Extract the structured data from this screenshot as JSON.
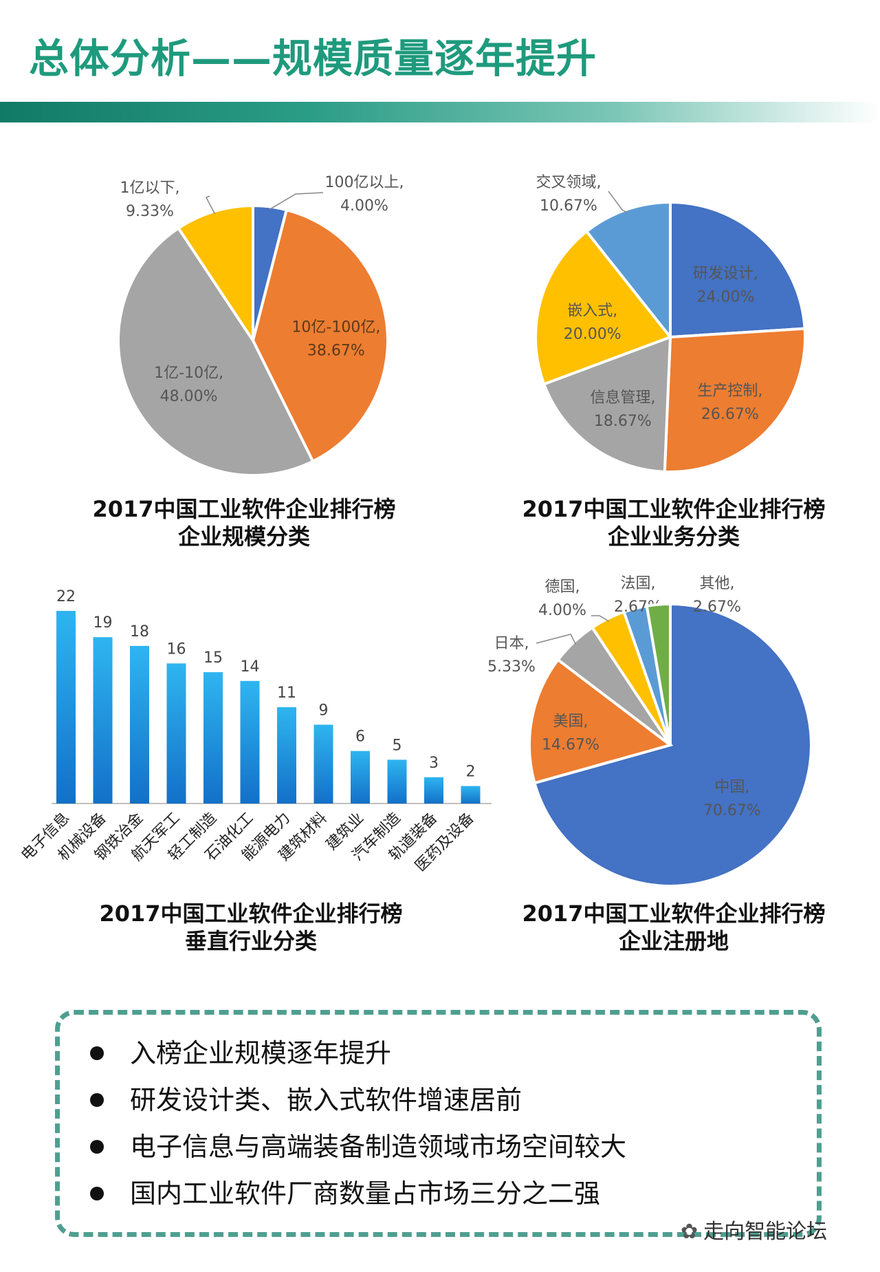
{
  "title": "总体分析——规模质量逐年提升",
  "charts": [
    {
      "id": "scale",
      "type": "pie",
      "title_line1": "2017中国工业软件企业排行榜",
      "title_line2": "企业规模分类",
      "slices": [
        {
          "label": "100亿以上",
          "value": 4.0,
          "value_text": "4.00%",
          "color": "#4472c4"
        },
        {
          "label": "10亿-100亿",
          "value": 38.67,
          "value_text": "38.67%",
          "color": "#ed7d31"
        },
        {
          "label": "1亿-10亿",
          "value": 48.0,
          "value_text": "48.00%",
          "color": "#a5a5a5"
        },
        {
          "label": "1亿以下",
          "value": 9.33,
          "value_text": "9.33%",
          "color": "#ffc000"
        }
      ]
    },
    {
      "id": "business",
      "type": "pie",
      "title_line1": "2017中国工业软件企业排行榜",
      "title_line2": "企业业务分类",
      "slices": [
        {
          "label": "研发设计",
          "value": 24.0,
          "value_text": "24.00%",
          "color": "#4472c4"
        },
        {
          "label": "生产控制",
          "value": 26.67,
          "value_text": "26.67%",
          "color": "#ed7d31"
        },
        {
          "label": "信息管理",
          "value": 18.67,
          "value_text": "18.67%",
          "color": "#a5a5a5"
        },
        {
          "label": "嵌入式",
          "value": 20.0,
          "value_text": "20.00%",
          "color": "#ffc000"
        },
        {
          "label": "交叉领域",
          "value": 10.67,
          "value_text": "10.67%",
          "color": "#5b9bd5"
        }
      ]
    },
    {
      "id": "industry",
      "type": "bar",
      "title_line1": "2017中国工业软件企业排行榜",
      "title_line2": "垂直行业分类",
      "categories": [
        "电子信息",
        "机械设备",
        "钢铁冶金",
        "航天军工",
        "轻工制造",
        "石油化工",
        "能源电力",
        "建筑材料",
        "建筑业",
        "汽车制造",
        "轨道装备",
        "医药及设备"
      ],
      "values": [
        22,
        19,
        18,
        16,
        15,
        14,
        11,
        9,
        6,
        5,
        3,
        2
      ],
      "ylim": [
        0,
        22
      ],
      "bar_color_top": "#2fb5f0",
      "bar_color_bottom": "#1370c8"
    },
    {
      "id": "region",
      "type": "pie",
      "title_line1": "2017中国工业软件企业排行榜",
      "title_line2": "企业注册地",
      "slices": [
        {
          "label": "中国",
          "value": 70.67,
          "value_text": "70.67%",
          "color": "#4472c4"
        },
        {
          "label": "美国",
          "value": 14.67,
          "value_text": "14.67%",
          "color": "#ed7d31"
        },
        {
          "label": "日本",
          "value": 5.33,
          "value_text": "5.33%",
          "color": "#a5a5a5"
        },
        {
          "label": "德国",
          "value": 4.0,
          "value_text": "4.00%",
          "color": "#ffc000"
        },
        {
          "label": "法国",
          "value": 2.67,
          "value_text": "2.67%",
          "color": "#5b9bd5"
        },
        {
          "label": "其他",
          "value": 2.67,
          "value_text": "2.67%",
          "color": "#70ad47"
        }
      ]
    }
  ],
  "summary": {
    "points": [
      "入榜企业规模逐年提升",
      "研发设计类、嵌入式软件增速居前",
      "电子信息与高端装备制造领域市场空间较大",
      "国内工业软件厂商数量占市场三分之二强"
    ]
  },
  "watermark": "走向智能论坛"
}
